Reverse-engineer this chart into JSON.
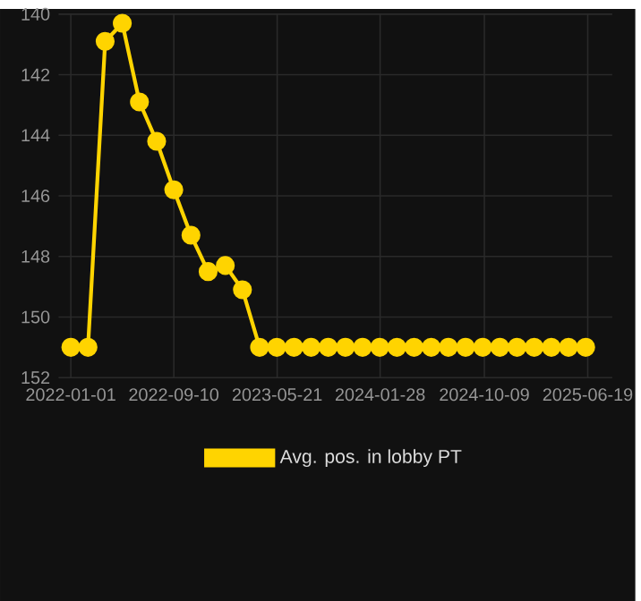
{
  "chart_data": {
    "type": "line",
    "x": [
      "2022-01-01",
      "2022-02-12",
      "2022-03-26",
      "2022-05-07",
      "2022-06-18",
      "2022-07-30",
      "2022-09-10",
      "2022-10-22",
      "2022-12-03",
      "2023-01-14",
      "2023-02-25",
      "2023-04-08",
      "2023-05-20",
      "2023-07-01",
      "2023-08-12",
      "2023-09-23",
      "2023-11-04",
      "2023-12-16",
      "2024-01-27",
      "2024-03-09",
      "2024-04-20",
      "2024-06-01",
      "2024-07-13",
      "2024-08-24",
      "2024-10-05",
      "2024-11-16",
      "2024-12-28",
      "2025-02-08",
      "2025-03-22",
      "2025-05-03",
      "2025-06-14"
    ],
    "series": [
      {
        "name": "Avg. pos. in lobby PT",
        "color": "#ffd400",
        "values": [
          151,
          151,
          140.9,
          140.3,
          142.9,
          144.2,
          145.8,
          147.3,
          148.5,
          148.3,
          149.1,
          151,
          151,
          151,
          151,
          151,
          151,
          151,
          151,
          151,
          151,
          151,
          151,
          151,
          151,
          151,
          151,
          151,
          151,
          151,
          151
        ]
      }
    ],
    "xlim": [
      "2021-12-02",
      "2025-08-18"
    ],
    "xticks": [
      "2022-01-01",
      "2022-09-10",
      "2023-05-21",
      "2024-01-28",
      "2024-10-09",
      "2025-06-19"
    ],
    "ylim": [
      152,
      140
    ],
    "yticks": [
      140,
      142,
      144,
      146,
      148,
      150,
      152
    ],
    "grid": true,
    "legend": "bottom",
    "marker": "circle",
    "line_style": "solid"
  }
}
